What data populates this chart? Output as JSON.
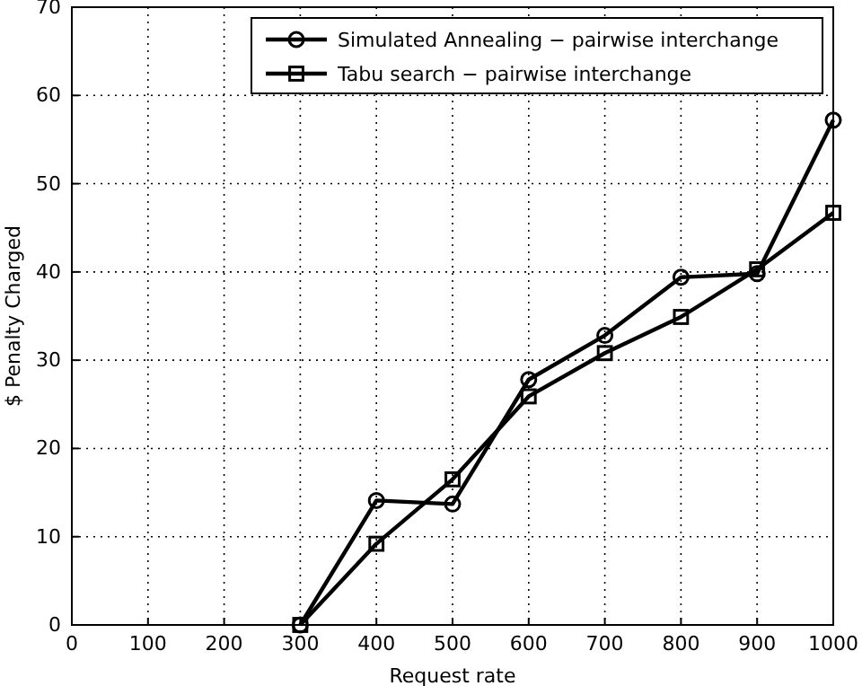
{
  "chart_data": {
    "type": "line",
    "xlabel": "Request rate",
    "ylabel": "$ Penalty Charged",
    "x": [
      300,
      400,
      500,
      600,
      700,
      800,
      900,
      1000
    ],
    "series": [
      {
        "name": "Simulated Annealing − pairwise interchange",
        "color": "#000000",
        "marker": "circle",
        "values": [
          0,
          14.1,
          13.7,
          27.8,
          32.8,
          39.4,
          39.8,
          57.2
        ]
      },
      {
        "name": "Tabu search − pairwise interchange",
        "color": "#000000",
        "marker": "square",
        "values": [
          0,
          9.2,
          16.5,
          25.9,
          30.8,
          34.9,
          40.3,
          46.7
        ]
      }
    ],
    "xlim": [
      0,
      1000
    ],
    "xticks": [
      0,
      100,
      200,
      300,
      400,
      500,
      600,
      700,
      800,
      900,
      1000
    ],
    "ylim": [
      0,
      70
    ],
    "yticks": [
      0,
      10,
      20,
      30,
      40,
      50,
      60,
      70
    ],
    "grid": true,
    "legend": "top right",
    "line_style": "solid"
  }
}
